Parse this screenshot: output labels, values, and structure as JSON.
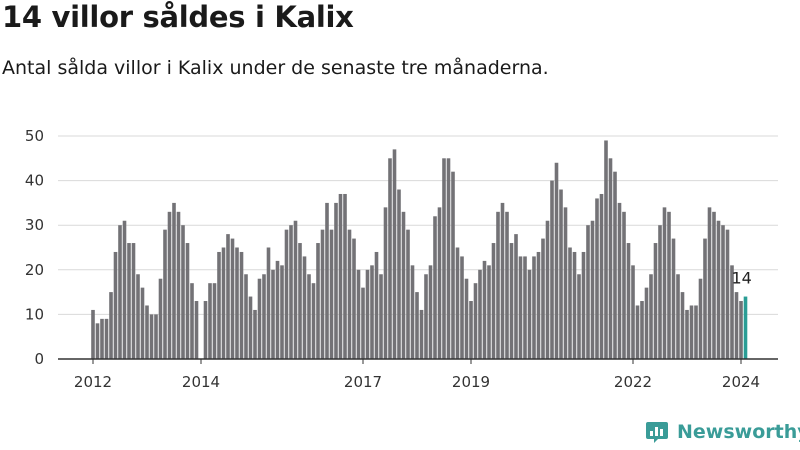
{
  "title": "14 villor såldes i Kalix",
  "subtitle": "Antal sålda villor i Kalix under de senaste tre månaderna.",
  "brand": "Newsworthy",
  "colors": {
    "bar": "#737276",
    "highlight": "#2a9d95",
    "grid": "#d9d9d9",
    "axis": "#333333"
  },
  "chart_data": {
    "type": "bar",
    "title": "14 villor såldes i Kalix",
    "subtitle": "Antal sålda villor i Kalix under de senaste tre månaderna.",
    "xlabel": "",
    "ylabel": "",
    "ylim": [
      0,
      50
    ],
    "yticks": [
      "0",
      "10",
      "20",
      "30",
      "40",
      "50"
    ],
    "xtick_labels": [
      {
        "label": "2012",
        "index": 0
      },
      {
        "label": "2014",
        "index": 24
      },
      {
        "label": "2017",
        "index": 60
      },
      {
        "label": "2019",
        "index": 84
      },
      {
        "label": "2022",
        "index": 120
      },
      {
        "label": "2024",
        "index": 144
      }
    ],
    "grid": true,
    "highlight_last": true,
    "last_value_label": "14",
    "values": [
      11,
      8,
      9,
      9,
      15,
      24,
      30,
      31,
      26,
      26,
      19,
      16,
      12,
      10,
      10,
      18,
      29,
      33,
      35,
      33,
      30,
      26,
      17,
      13,
      0,
      13,
      17,
      17,
      24,
      25,
      28,
      27,
      25,
      24,
      19,
      14,
      11,
      18,
      19,
      25,
      20,
      22,
      21,
      29,
      30,
      31,
      26,
      23,
      19,
      17,
      26,
      29,
      35,
      29,
      35,
      37,
      37,
      29,
      27,
      20,
      16,
      20,
      21,
      24,
      19,
      34,
      45,
      47,
      38,
      33,
      29,
      21,
      15,
      11,
      19,
      21,
      32,
      34,
      45,
      45,
      42,
      25,
      23,
      18,
      13,
      17,
      20,
      22,
      21,
      26,
      33,
      35,
      33,
      26,
      28,
      23,
      23,
      20,
      23,
      24,
      27,
      31,
      40,
      44,
      38,
      34,
      25,
      24,
      19,
      24,
      30,
      31,
      36,
      37,
      49,
      45,
      42,
      35,
      33,
      26,
      21,
      12,
      13,
      16,
      19,
      26,
      30,
      34,
      33,
      27,
      19,
      15,
      11,
      12,
      12,
      18,
      27,
      34,
      33,
      31,
      30,
      29,
      21,
      15,
      13,
      14
    ]
  }
}
